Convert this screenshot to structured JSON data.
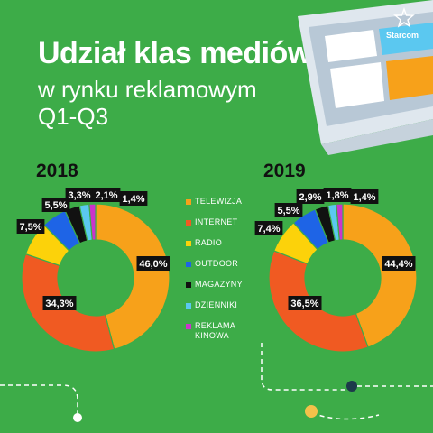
{
  "header": {
    "title": "Udział klas mediów",
    "subtitle": "w rynku reklamowym",
    "period": "Q1-Q3"
  },
  "brand": {
    "name": "Starcom",
    "icon": "starcom-star-icon"
  },
  "colors": {
    "background": "#3dac48",
    "TELEWIZJA": "#f7a11a",
    "INTERNET": "#f05a22",
    "RADIO": "#fcd20a",
    "OUTDOOR": "#1e64e6",
    "MAGAZYNY": "#111111",
    "DZIENNIKI": "#5bc8f0",
    "REKLAMA KINOWA": "#cc33cc"
  },
  "legend": {
    "items": [
      "TELEWIZJA",
      "INTERNET",
      "RADIO",
      "OUTDOOR",
      "MAGAZYNY",
      "DZIENNIKI",
      "REKLAMA KINOWA"
    ]
  },
  "chart_data": [
    {
      "type": "pie",
      "title": "2018",
      "categories": [
        "TELEWIZJA",
        "INTERNET",
        "RADIO",
        "OUTDOOR",
        "MAGAZYNY",
        "DZIENNIKI",
        "REKLAMA KINOWA"
      ],
      "values": [
        46.0,
        34.3,
        7.5,
        5.5,
        3.3,
        2.1,
        1.4
      ],
      "labels": [
        "46,0%",
        "34,3%",
        "7,5%",
        "5,5%",
        "3,3%",
        "2,1%",
        "1,4%"
      ]
    },
    {
      "type": "pie",
      "title": "2019",
      "categories": [
        "TELEWIZJA",
        "INTERNET",
        "RADIO",
        "OUTDOOR",
        "MAGAZYNY",
        "DZIENNIKI",
        "REKLAMA KINOWA"
      ],
      "values": [
        44.4,
        36.5,
        7.4,
        5.5,
        2.9,
        1.8,
        1.4
      ],
      "labels": [
        "44,4%",
        "36,5%",
        "7,4%",
        "5,5%",
        "2,9%",
        "1,8%",
        "1,4%"
      ]
    }
  ]
}
